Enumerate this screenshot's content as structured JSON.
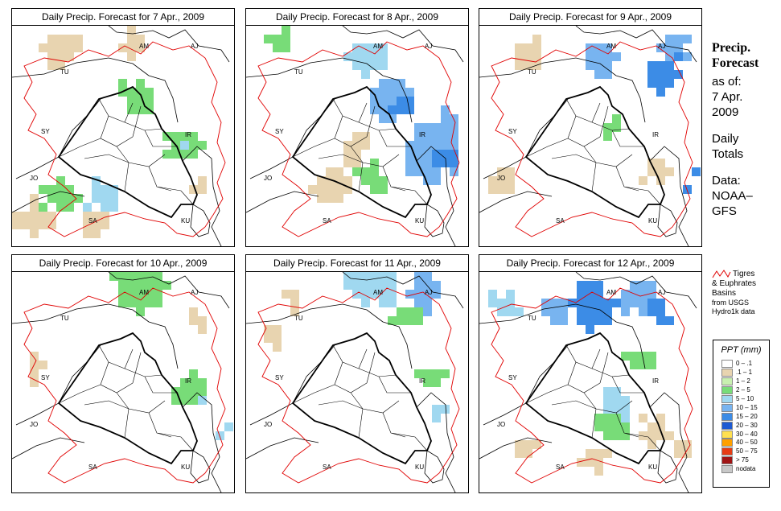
{
  "panels": [
    {
      "title": "Daily Precip. Forecast for  7 Apr., 2009"
    },
    {
      "title": "Daily Precip. Forecast for  8 Apr., 2009"
    },
    {
      "title": "Daily Precip. Forecast for  9 Apr., 2009"
    },
    {
      "title": "Daily Precip. Forecast for  10 Apr., 2009"
    },
    {
      "title": "Daily Precip. Forecast for  11 Apr., 2009"
    },
    {
      "title": "Daily Precip. Forecast for  12 Apr., 2009"
    }
  ],
  "country_labels": [
    "AM",
    "AJ",
    "TU",
    "SY",
    "IR",
    "JO",
    "SA",
    "KU"
  ],
  "sidebar": {
    "title_line1": "Precip.",
    "title_line2": "Forecast",
    "asof_line1": "as of:",
    "asof_line2": "7 Apr.",
    "asof_line3": "2009",
    "totals_line1": "Daily",
    "totals_line2": "Totals",
    "data_line1": "Data:",
    "data_line2": "NOAA–",
    "data_line3": "GFS"
  },
  "basin_note": {
    "line1": "Tigres",
    "line2": "& Euphrates",
    "line3": "Basins",
    "line4": "from USGS",
    "line5": "Hydro1k data"
  },
  "legend": {
    "title": "PPT (mm)",
    "items": [
      {
        "label": "0 – .1",
        "color": "#ffffff"
      },
      {
        "label": ".1 – 1",
        "color": "#e8d4b0"
      },
      {
        "label": "1 – 2",
        "color": "#c8f0b0"
      },
      {
        "label": "2 – 5",
        "color": "#78dc78"
      },
      {
        "label": "5 – 10",
        "color": "#a0d8f0"
      },
      {
        "label": "10 – 15",
        "color": "#78b4f0"
      },
      {
        "label": "15 – 20",
        "color": "#3c8ce6"
      },
      {
        "label": "20 – 30",
        "color": "#1e5ad2"
      },
      {
        "label": "30 – 40",
        "color": "#ffe050"
      },
      {
        "label": "40 – 50",
        "color": "#ffa000"
      },
      {
        "label": "50 – 75",
        "color": "#e63c14"
      },
      {
        "label": "> 75",
        "color": "#a01414"
      },
      {
        "label": "nodata",
        "color": "#c8c8c8"
      }
    ]
  }
}
